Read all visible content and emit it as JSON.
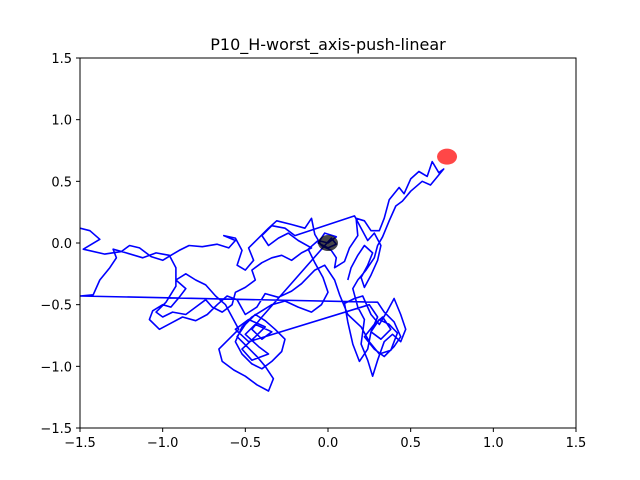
{
  "chart_data": {
    "type": "line",
    "title": "P10_H-worst_axis-push-linear",
    "xlabel": "",
    "ylabel": "",
    "xlim": [
      -1.5,
      1.5
    ],
    "ylim": [
      -1.5,
      1.5
    ],
    "x_ticks": [
      -1.5,
      -1.0,
      -0.5,
      0.0,
      0.5,
      1.0,
      1.5
    ],
    "x_tick_labels": [
      "−1.5",
      "−1.0",
      "−0.5",
      "0.0",
      "0.5",
      "1.0",
      "1.5"
    ],
    "y_ticks": [
      -1.5,
      -1.0,
      -0.5,
      0.0,
      0.5,
      1.0,
      1.5
    ],
    "y_tick_labels": [
      "−1.5",
      "−1.0",
      "−0.5",
      "0.0",
      "0.5",
      "1.0",
      "1.5"
    ],
    "grid": false,
    "series": [
      {
        "color": "#0000ff",
        "points": [
          [
            -1.5,
            0.12
          ],
          [
            -1.44,
            0.1
          ],
          [
            -1.38,
            0.03
          ],
          [
            -1.48,
            -0.05
          ],
          [
            -1.35,
            -0.09
          ],
          [
            -1.25,
            -0.07
          ],
          [
            -1.2,
            -0.02
          ],
          [
            -1.14,
            -0.04
          ],
          [
            -1.07,
            -0.11
          ],
          [
            -1.0,
            -0.14
          ],
          [
            -0.95,
            -0.1
          ],
          [
            -0.9,
            -0.06
          ],
          [
            -0.84,
            -0.02
          ],
          [
            -0.76,
            -0.03
          ],
          [
            -0.67,
            -0.01
          ],
          [
            -0.6,
            -0.04
          ],
          [
            -0.56,
            0.02
          ],
          [
            -0.63,
            0.06
          ],
          [
            -0.56,
            0.04
          ],
          [
            -0.52,
            -0.06
          ],
          [
            -0.55,
            -0.18
          ],
          [
            -0.5,
            -0.22
          ],
          [
            -0.45,
            -0.14
          ],
          [
            -0.48,
            -0.04
          ],
          [
            -0.42,
            0.04
          ],
          [
            -0.36,
            0.12
          ],
          [
            -0.31,
            0.18
          ],
          [
            -0.22,
            0.15
          ],
          [
            -0.14,
            0.12
          ],
          [
            -0.1,
            0.2
          ],
          [
            -0.08,
            0.07
          ],
          [
            -0.04,
            -0.02
          ],
          [
            0.02,
            -0.06
          ],
          [
            0.05,
            -0.12
          ],
          [
            0.04,
            -0.2
          ],
          [
            0.1,
            -0.15
          ],
          [
            0.13,
            -0.04
          ],
          [
            0.18,
            0.06
          ],
          [
            0.17,
            0.2
          ],
          [
            0.22,
            0.18
          ],
          [
            0.26,
            0.1
          ],
          [
            0.31,
            0.1
          ],
          [
            0.34,
            0.2
          ],
          [
            0.37,
            0.35
          ],
          [
            0.43,
            0.45
          ],
          [
            0.46,
            0.4
          ],
          [
            0.5,
            0.52
          ],
          [
            0.55,
            0.58
          ],
          [
            0.6,
            0.54
          ],
          [
            0.63,
            0.66
          ],
          [
            0.67,
            0.57
          ],
          [
            0.7,
            0.6
          ],
          [
            0.62,
            0.47
          ],
          [
            0.57,
            0.5
          ],
          [
            0.5,
            0.42
          ],
          [
            0.45,
            0.34
          ],
          [
            0.41,
            0.3
          ],
          [
            0.37,
            0.18
          ],
          [
            0.33,
            0.05
          ],
          [
            0.3,
            -0.02
          ],
          [
            0.28,
            -0.12
          ],
          [
            0.23,
            -0.22
          ],
          [
            0.18,
            -0.3
          ],
          [
            0.15,
            -0.37
          ],
          [
            0.18,
            -0.52
          ],
          [
            0.22,
            -0.62
          ],
          [
            0.2,
            -0.82
          ],
          [
            0.24,
            -0.95
          ],
          [
            0.27,
            -1.08
          ],
          [
            0.3,
            -0.95
          ],
          [
            0.34,
            -0.8
          ],
          [
            0.39,
            -0.74
          ],
          [
            0.44,
            -0.8
          ],
          [
            0.47,
            -0.7
          ],
          [
            0.44,
            -0.58
          ],
          [
            0.4,
            -0.45
          ],
          [
            0.36,
            -0.55
          ],
          [
            0.31,
            -0.66
          ],
          [
            0.26,
            -0.58
          ],
          [
            0.21,
            -0.43
          ],
          [
            0.16,
            -0.45
          ],
          [
            0.1,
            -0.49
          ],
          [
            0.12,
            -0.64
          ],
          [
            0.15,
            -0.82
          ],
          [
            0.19,
            -0.96
          ],
          [
            0.24,
            -0.86
          ],
          [
            0.26,
            -0.72
          ],
          [
            0.31,
            -0.62
          ],
          [
            0.37,
            -0.66
          ],
          [
            0.42,
            -0.73
          ],
          [
            0.38,
            -0.87
          ],
          [
            0.31,
            -0.9
          ],
          [
            0.25,
            -0.8
          ],
          [
            0.2,
            -0.68
          ],
          [
            0.12,
            -0.58
          ],
          [
            0.07,
            -0.42
          ],
          [
            0.04,
            -0.3
          ],
          [
            -0.02,
            -0.18
          ],
          [
            -0.08,
            -0.22
          ],
          [
            -0.16,
            -0.33
          ],
          [
            -0.22,
            -0.39
          ],
          [
            -0.3,
            -0.44
          ],
          [
            -0.38,
            -0.41
          ],
          [
            -0.43,
            -0.52
          ],
          [
            -0.5,
            -0.58
          ],
          [
            -0.55,
            -0.46
          ],
          [
            -0.61,
            -0.43
          ],
          [
            -0.67,
            -0.5
          ],
          [
            -0.73,
            -0.58
          ],
          [
            -0.8,
            -0.63
          ],
          [
            -0.88,
            -0.6
          ],
          [
            -0.95,
            -0.65
          ],
          [
            -1.02,
            -0.7
          ],
          [
            -1.08,
            -0.62
          ],
          [
            -1.06,
            -0.55
          ],
          [
            -1.0,
            -0.5
          ],
          [
            -0.95,
            -0.52
          ],
          [
            -0.9,
            -0.44
          ],
          [
            -0.86,
            -0.37
          ],
          [
            -0.92,
            -0.3
          ],
          [
            -0.86,
            -0.25
          ],
          [
            -0.8,
            -0.3
          ],
          [
            -0.74,
            -0.34
          ],
          [
            -0.68,
            -0.43
          ],
          [
            -0.62,
            -0.5
          ],
          [
            -0.58,
            -0.6
          ],
          [
            -0.54,
            -0.7
          ],
          [
            -0.6,
            -0.78
          ],
          [
            -0.66,
            -0.86
          ],
          [
            -0.64,
            -0.96
          ],
          [
            -0.57,
            -1.03
          ],
          [
            -0.5,
            -1.08
          ],
          [
            -0.43,
            -1.15
          ],
          [
            -0.36,
            -1.2
          ],
          [
            -0.33,
            -1.1
          ],
          [
            -0.38,
            -1.0
          ],
          [
            -0.43,
            -0.92
          ],
          [
            -0.49,
            -0.84
          ],
          [
            -0.55,
            -0.76
          ],
          [
            -0.5,
            -0.66
          ],
          [
            -0.44,
            -0.58
          ],
          [
            -0.38,
            -0.63
          ],
          [
            -0.32,
            -0.7
          ],
          [
            -0.26,
            -0.78
          ],
          [
            -0.28,
            -0.88
          ],
          [
            -0.34,
            -0.96
          ],
          [
            -0.4,
            -1.02
          ],
          [
            -0.46,
            -0.98
          ],
          [
            -0.52,
            -0.9
          ],
          [
            -0.56,
            -0.8
          ],
          [
            -0.52,
            -0.68
          ],
          [
            -0.46,
            -0.6
          ],
          [
            -0.4,
            -0.55
          ],
          [
            -0.34,
            -0.5
          ],
          [
            -0.26,
            -0.47
          ],
          [
            -0.18,
            -0.52
          ],
          [
            -0.1,
            -0.56
          ],
          [
            -0.04,
            -0.5
          ],
          [
            0.0,
            -0.4
          ],
          [
            -0.03,
            -0.28
          ],
          [
            -0.08,
            -0.16
          ],
          [
            -0.12,
            -0.05
          ],
          [
            -0.06,
            0.02
          ],
          [
            0.0,
            0.0
          ],
          [
            0.05,
            0.05
          ],
          [
            -0.02,
            0.08
          ],
          [
            -0.06,
            0.0
          ],
          [
            0.0,
            -0.04
          ],
          [
            0.05,
            -0.01
          ],
          [
            0.02,
            0.04
          ],
          [
            -0.4,
            -0.6
          ],
          [
            -0.46,
            -0.7
          ],
          [
            -0.4,
            -0.78
          ],
          [
            -0.34,
            -0.72
          ],
          [
            -0.44,
            -0.66
          ],
          [
            -0.5,
            -0.74
          ],
          [
            -0.42,
            -0.84
          ],
          [
            -0.36,
            -0.9
          ],
          [
            -0.46,
            -0.95
          ],
          [
            -0.52,
            -0.86
          ],
          [
            -0.44,
            -0.76
          ],
          [
            -0.38,
            -0.68
          ],
          [
            -0.48,
            -0.62
          ],
          [
            -0.56,
            -0.7
          ],
          [
            -0.48,
            -0.8
          ],
          [
            0.25,
            -0.5
          ],
          [
            0.3,
            -0.6
          ],
          [
            0.26,
            -0.72
          ],
          [
            0.32,
            -0.78
          ],
          [
            0.38,
            -0.7
          ],
          [
            0.33,
            -0.6
          ],
          [
            0.28,
            -0.66
          ],
          [
            0.22,
            -0.76
          ],
          [
            0.28,
            -0.86
          ],
          [
            0.34,
            -0.92
          ],
          [
            0.4,
            -0.84
          ],
          [
            0.44,
            -0.76
          ],
          [
            0.4,
            -0.64
          ],
          [
            0.34,
            -0.56
          ],
          [
            0.3,
            -0.48
          ],
          [
            -1.5,
            -0.43
          ],
          [
            -1.42,
            -0.42
          ],
          [
            -1.38,
            -0.3
          ],
          [
            -1.32,
            -0.2
          ],
          [
            -1.28,
            -0.12
          ],
          [
            -1.3,
            -0.05
          ],
          [
            -1.22,
            -0.08
          ],
          [
            -1.12,
            -0.12
          ],
          [
            -1.04,
            -0.08
          ],
          [
            -0.96,
            -0.1
          ],
          [
            -0.92,
            -0.2
          ],
          [
            -0.92,
            -0.35
          ],
          [
            -0.98,
            -0.48
          ],
          [
            -1.04,
            -0.56
          ],
          [
            -1.0,
            -0.6
          ],
          [
            -0.94,
            -0.56
          ],
          [
            -0.86,
            -0.58
          ],
          [
            -0.8,
            -0.52
          ],
          [
            -0.74,
            -0.46
          ],
          [
            -0.7,
            -0.52
          ],
          [
            -0.64,
            -0.56
          ],
          [
            -0.58,
            -0.5
          ],
          [
            -0.56,
            -0.4
          ],
          [
            -0.5,
            -0.36
          ],
          [
            -0.44,
            -0.3
          ],
          [
            -0.46,
            -0.22
          ],
          [
            -0.4,
            -0.16
          ],
          [
            -0.34,
            -0.12
          ],
          [
            -0.28,
            -0.1
          ],
          [
            -0.22,
            -0.14
          ],
          [
            -0.16,
            -0.08
          ],
          [
            -0.1,
            -0.04
          ],
          [
            -0.18,
            0.02
          ],
          [
            -0.24,
            0.08
          ],
          [
            -0.3,
            0.04
          ],
          [
            -0.36,
            -0.02
          ],
          [
            -0.4,
            0.06
          ],
          [
            -0.34,
            0.14
          ],
          [
            -0.26,
            0.12
          ],
          [
            -0.2,
            0.06
          ],
          [
            0.16,
            0.22
          ],
          [
            0.2,
            0.12
          ],
          [
            0.24,
            0.02
          ],
          [
            0.28,
            0.08
          ],
          [
            0.32,
            -0.02
          ],
          [
            0.3,
            -0.14
          ],
          [
            0.26,
            -0.26
          ],
          [
            0.22,
            -0.36
          ],
          [
            0.2,
            -0.28
          ],
          [
            0.24,
            -0.18
          ],
          [
            0.27,
            -0.08
          ],
          [
            0.22,
            -0.02
          ],
          [
            0.18,
            -0.1
          ],
          [
            0.14,
            -0.2
          ],
          [
            0.12,
            -0.3
          ]
        ]
      }
    ],
    "markers": [
      {
        "label": "start",
        "x": 0.0,
        "y": 0.0,
        "color": "#000000"
      },
      {
        "label": "goal",
        "x": 0.72,
        "y": 0.7,
        "color": "#ff0000"
      }
    ]
  }
}
